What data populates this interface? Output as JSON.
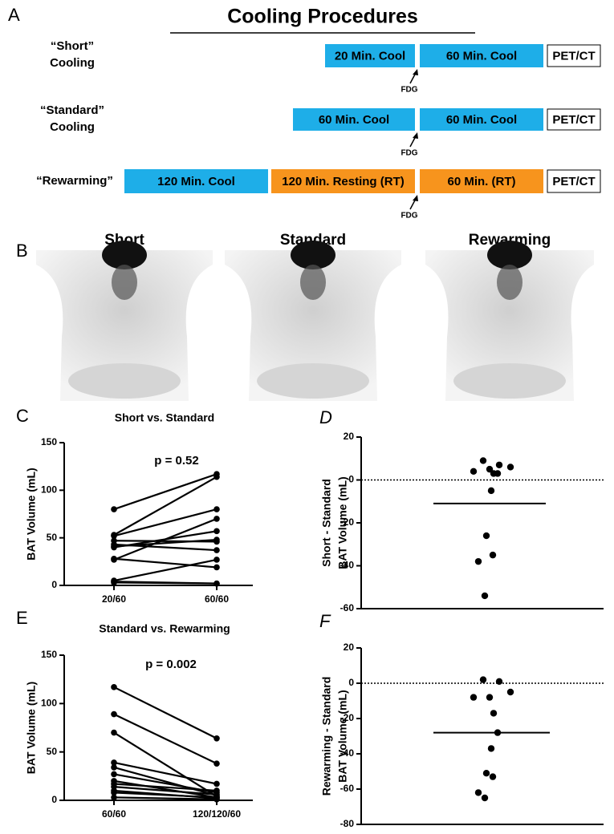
{
  "panel_a": {
    "label": "A",
    "title": "Cooling Procedures",
    "rows": [
      {
        "label": [
          "“Short”",
          "Cooling"
        ],
        "blocks": [
          {
            "text": "20 Min. Cool",
            "color": "#1eaee8"
          },
          {
            "text": "60 Min. Cool",
            "color": "#1eaee8"
          }
        ],
        "marker": "FDG",
        "end": "PET/CT"
      },
      {
        "label": [
          "“Standard”",
          "Cooling"
        ],
        "blocks": [
          {
            "text": "60 Min. Cool",
            "color": "#1eaee8"
          },
          {
            "text": "60 Min. Cool",
            "color": "#1eaee8"
          }
        ],
        "marker": "FDG",
        "end": "PET/CT"
      },
      {
        "label": [
          "“Rewarming”"
        ],
        "blocks": [
          {
            "text": "120 Min. Cool",
            "color": "#1eaee8"
          },
          {
            "text": "120 Min. Resting (RT)",
            "color": "#f7941d"
          },
          {
            "text": "60 Min. (RT)",
            "color": "#f7941d"
          }
        ],
        "marker": "FDG",
        "end": "PET/CT"
      }
    ]
  },
  "panel_b": {
    "label": "B",
    "images": [
      "Short",
      "Standard",
      "Rewarming"
    ]
  },
  "chart_data": [
    {
      "type": "paired",
      "label": "C",
      "title": "Short vs. Standard",
      "ylabel": [
        "BAT Volume (mL)"
      ],
      "annotation": "p = 0.52",
      "categories": [
        "20/60",
        "60/60"
      ],
      "color": "#000000",
      "ylim": [
        0,
        150
      ],
      "yticks": [
        0,
        50,
        100,
        150
      ],
      "series": [
        {
          "values": [
            80,
            117
          ]
        },
        {
          "values": [
            53,
            114
          ]
        },
        {
          "values": [
            52,
            80
          ]
        },
        {
          "values": [
            47,
            46
          ]
        },
        {
          "values": [
            43,
            37
          ]
        },
        {
          "values": [
            41,
            48
          ]
        },
        {
          "values": [
            40,
            57
          ]
        },
        {
          "values": [
            28,
            19
          ]
        },
        {
          "values": [
            27,
            70
          ]
        },
        {
          "values": [
            5,
            27
          ]
        },
        {
          "values": [
            4,
            2
          ]
        },
        {
          "values": [
            3,
            2
          ]
        }
      ]
    },
    {
      "type": "dot",
      "label": "D",
      "ylabel": [
        "Short - Standard",
        "BAT Volume (mL)"
      ],
      "color": "#000000",
      "values": [
        9,
        7,
        6,
        5,
        4,
        3,
        3,
        -5,
        -26,
        -35,
        -38,
        -54
      ],
      "mean": -11,
      "reference": 0,
      "ylim": [
        -60,
        20
      ],
      "yticks": [
        -60,
        -40,
        -20,
        0,
        20
      ]
    },
    {
      "type": "paired",
      "label": "E",
      "title": "Standard vs. Rewarming",
      "ylabel": [
        "BAT Volume (mL)"
      ],
      "annotation": "p = 0.002",
      "categories": [
        "60/60",
        "120/120/60"
      ],
      "color": "#000000",
      "ylim": [
        0,
        150
      ],
      "yticks": [
        0,
        50,
        100,
        150
      ],
      "series": [
        {
          "values": [
            117,
            64
          ]
        },
        {
          "values": [
            89,
            38
          ]
        },
        {
          "values": [
            70,
            4
          ]
        },
        {
          "values": [
            39,
            17
          ]
        },
        {
          "values": [
            34,
            5
          ]
        },
        {
          "values": [
            27,
            8
          ]
        },
        {
          "values": [
            20,
            3
          ]
        },
        {
          "values": [
            17,
            10
          ]
        },
        {
          "values": [
            14,
            6
          ]
        },
        {
          "values": [
            10,
            2
          ]
        },
        {
          "values": [
            8,
            3
          ]
        },
        {
          "values": [
            3,
            1
          ]
        }
      ]
    },
    {
      "type": "dot",
      "label": "F",
      "ylabel": [
        "Rewarming - Standard",
        "BAT Volume (mL)"
      ],
      "color": "#000000",
      "values": [
        2,
        1,
        -5,
        -8,
        -8,
        -17,
        -28,
        -37,
        -51,
        -53,
        -62,
        -65
      ],
      "mean": -28,
      "reference": 0,
      "ylim": [
        -80,
        20
      ],
      "yticks": [
        -80,
        -60,
        -40,
        -20,
        0,
        20
      ]
    }
  ]
}
